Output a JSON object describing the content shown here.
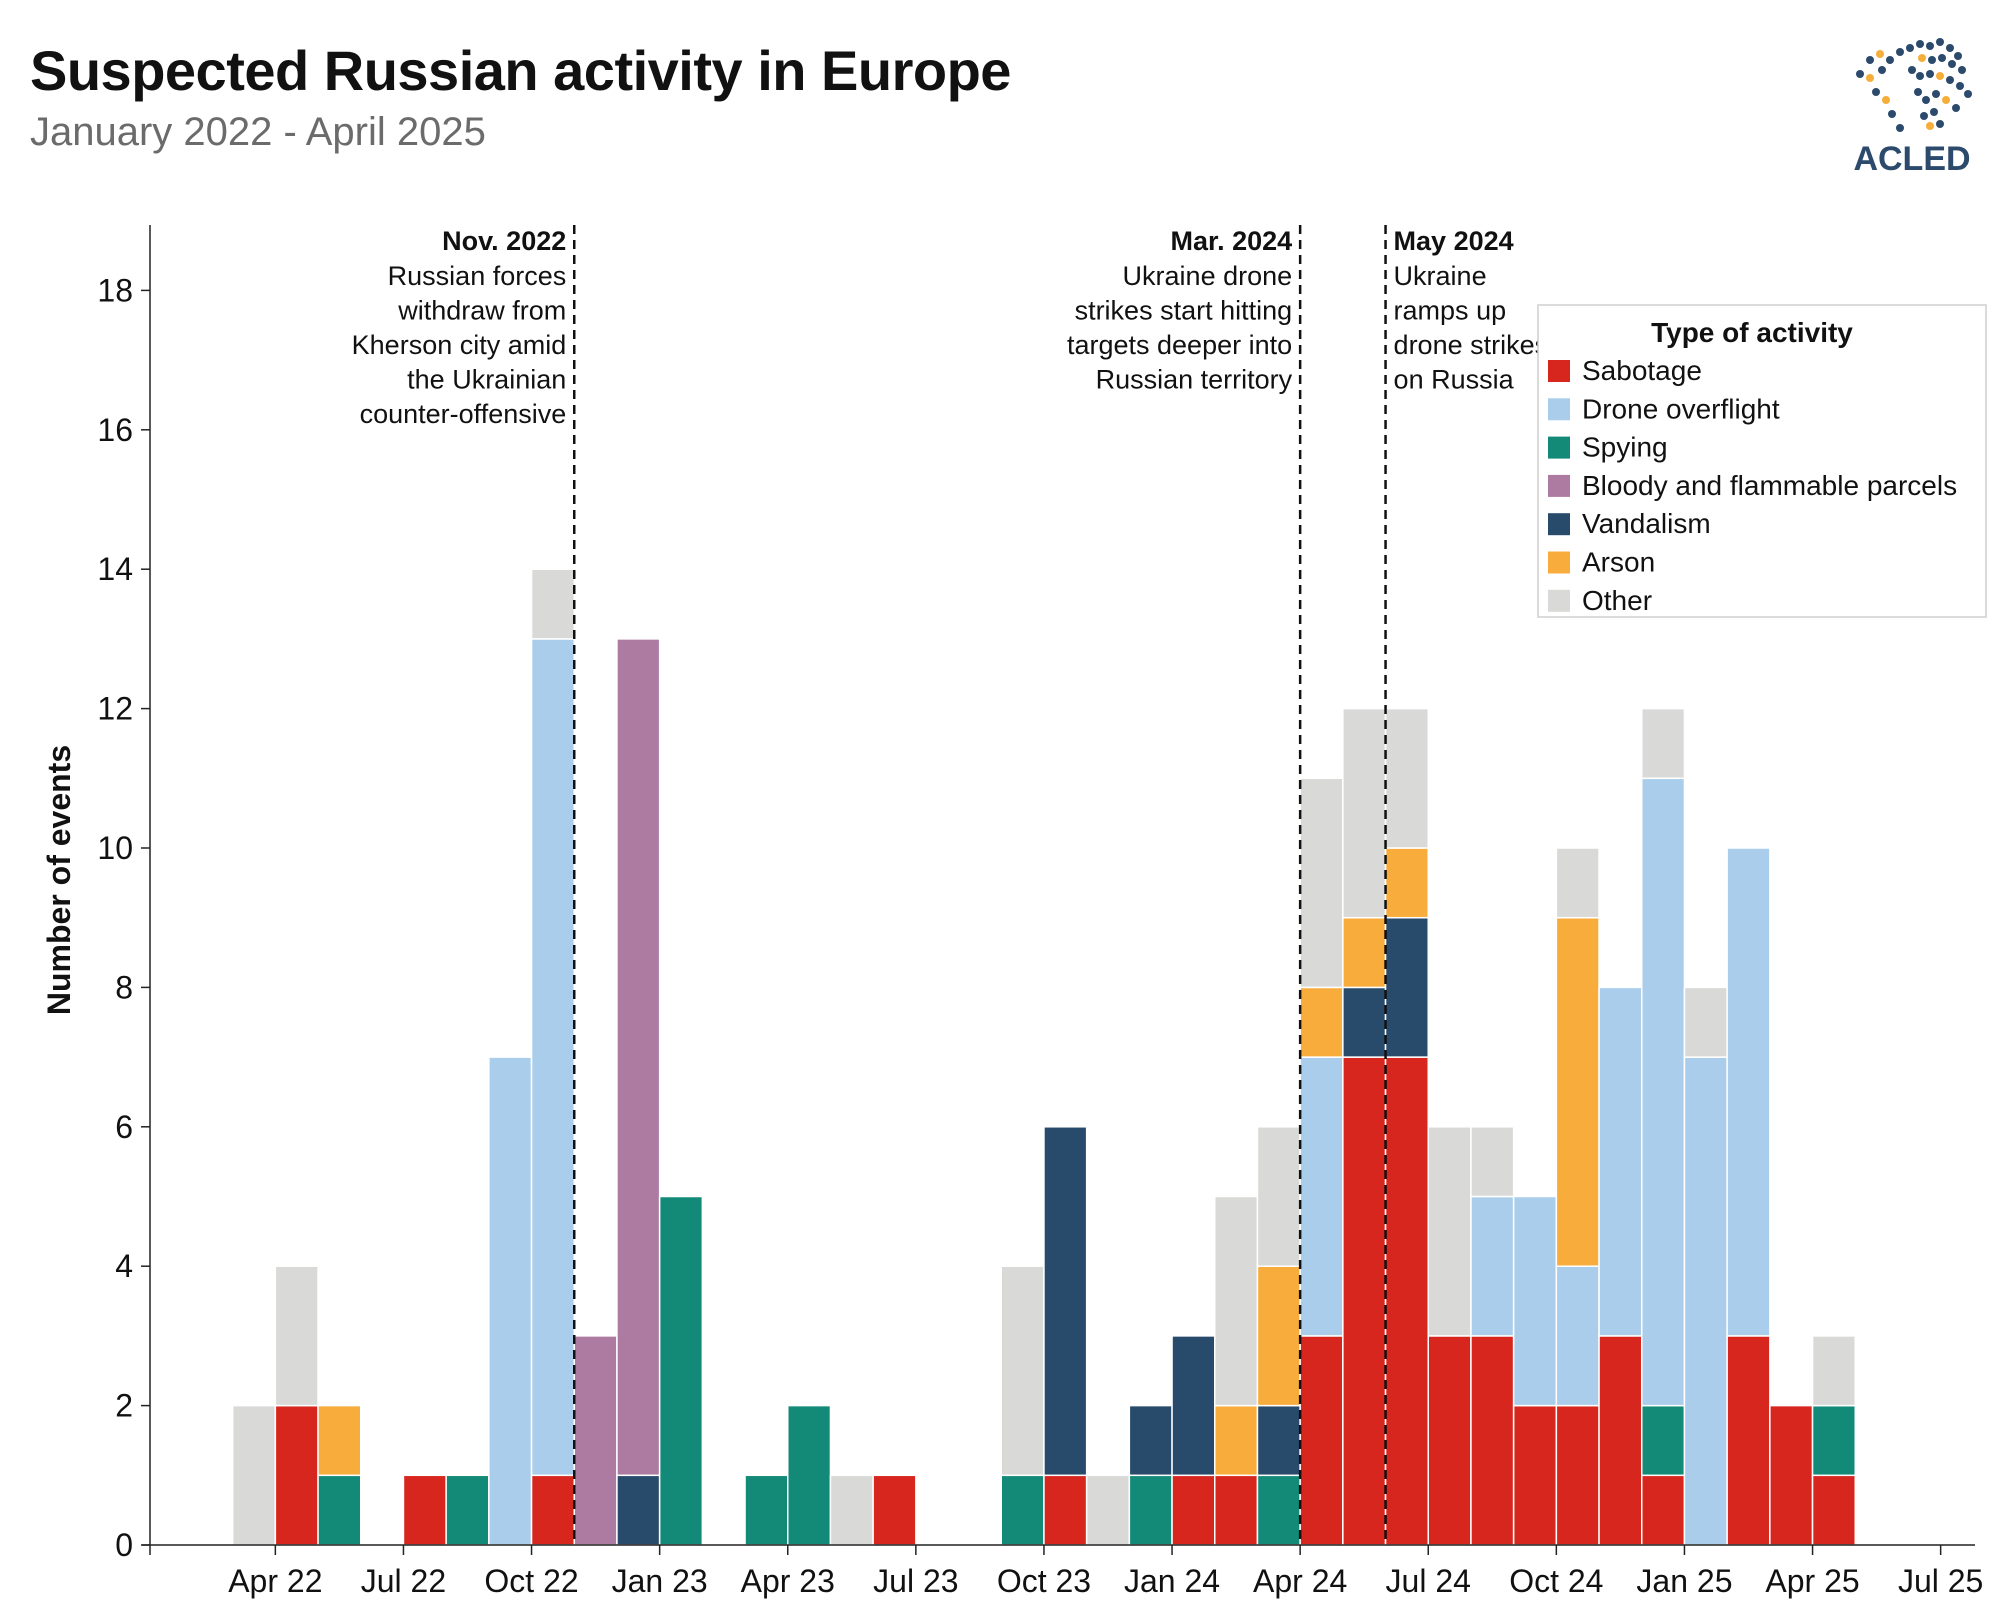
{
  "header": {
    "title": "Suspected Russian activity in Europe",
    "subtitle": "January 2022 - April 2025",
    "logo_text": "ACLED"
  },
  "colors": {
    "Sabotage": "#d7261e",
    "Drone overflight": "#a9cdea",
    "Spying": "#138a78",
    "Bloody and flammable parcels": "#ad7aa1",
    "Vandalism": "#284b6c",
    "Arson": "#f8ac3b",
    "Other": "#d9dad8"
  },
  "chart_data": {
    "type": "bar",
    "stacked": true,
    "ylabel": "Number of events",
    "ylim": [
      0,
      19
    ],
    "yticks": [
      0,
      2,
      4,
      6,
      8,
      10,
      12,
      14,
      16,
      18
    ],
    "xlim": [
      "2022-01",
      "2025-07"
    ],
    "xticks": [
      "Apr 22",
      "Jul 22",
      "Oct 22",
      "Jan 23",
      "Apr 23",
      "Jul 23",
      "Oct 23",
      "Jan 24",
      "Apr 24",
      "Jul 24",
      "Oct 24",
      "Jan 25",
      "Apr 25",
      "Jul 25"
    ],
    "grid": false,
    "legend": {
      "title": "Type of activity",
      "position": "top-right",
      "entries": [
        "Sabotage",
        "Drone overflight",
        "Spying",
        "Bloody and flammable parcels",
        "Vandalism",
        "Arson",
        "Other"
      ]
    },
    "stack_order": [
      "Sabotage",
      "Spying",
      "Vandalism",
      "Drone overflight",
      "Bloody and flammable parcels",
      "Arson",
      "Other"
    ],
    "months": [
      "2022-03",
      "2022-04",
      "2022-05",
      "2022-06",
      "2022-07",
      "2022-08",
      "2022-09",
      "2022-10",
      "2022-11",
      "2022-12",
      "2023-01",
      "2023-02",
      "2023-03",
      "2023-04",
      "2023-05",
      "2023-06",
      "2023-07",
      "2023-08",
      "2023-09",
      "2023-10",
      "2023-11",
      "2023-12",
      "2024-01",
      "2024-02",
      "2024-03",
      "2024-04",
      "2024-05",
      "2024-06",
      "2024-07",
      "2024-08",
      "2024-09",
      "2024-10",
      "2024-11",
      "2024-12",
      "2025-01",
      "2025-02",
      "2025-03",
      "2025-04"
    ],
    "series": [
      {
        "name": "Sabotage",
        "values": [
          0,
          2,
          0,
          0,
          1,
          0,
          0,
          1,
          0,
          0,
          0,
          0,
          0,
          0,
          0,
          1,
          0,
          0,
          0,
          1,
          0,
          0,
          1,
          1,
          0,
          3,
          7,
          7,
          3,
          3,
          2,
          2,
          3,
          1,
          0,
          3,
          2,
          1
        ]
      },
      {
        "name": "Spying",
        "values": [
          0,
          0,
          1,
          0,
          0,
          1,
          0,
          0,
          0,
          0,
          5,
          0,
          1,
          2,
          0,
          0,
          0,
          0,
          1,
          0,
          0,
          1,
          0,
          0,
          1,
          0,
          0,
          0,
          0,
          0,
          0,
          0,
          0,
          1,
          0,
          0,
          0,
          1
        ]
      },
      {
        "name": "Vandalism",
        "values": [
          0,
          0,
          0,
          0,
          0,
          0,
          0,
          0,
          0,
          1,
          0,
          0,
          0,
          0,
          0,
          0,
          0,
          0,
          0,
          5,
          0,
          1,
          2,
          0,
          1,
          0,
          1,
          2,
          0,
          0,
          0,
          0,
          0,
          0,
          0,
          0,
          0,
          0
        ]
      },
      {
        "name": "Drone overflight",
        "values": [
          0,
          0,
          0,
          0,
          0,
          0,
          7,
          12,
          0,
          0,
          0,
          0,
          0,
          0,
          0,
          0,
          0,
          0,
          0,
          0,
          0,
          0,
          0,
          0,
          0,
          4,
          0,
          0,
          0,
          2,
          3,
          2,
          5,
          9,
          7,
          7,
          0,
          0
        ]
      },
      {
        "name": "Bloody and flammable parcels",
        "values": [
          0,
          0,
          0,
          0,
          0,
          0,
          0,
          0,
          3,
          12,
          0,
          0,
          0,
          0,
          0,
          0,
          0,
          0,
          0,
          0,
          0,
          0,
          0,
          0,
          0,
          0,
          0,
          0,
          0,
          0,
          0,
          0,
          0,
          0,
          0,
          0,
          0,
          0
        ]
      },
      {
        "name": "Arson",
        "values": [
          0,
          0,
          1,
          0,
          0,
          0,
          0,
          0,
          0,
          0,
          0,
          0,
          0,
          0,
          0,
          0,
          0,
          0,
          0,
          0,
          0,
          0,
          0,
          1,
          2,
          1,
          1,
          1,
          0,
          0,
          0,
          5,
          0,
          0,
          0,
          0,
          0,
          0
        ]
      },
      {
        "name": "Other",
        "values": [
          2,
          2,
          0,
          0,
          0,
          0,
          0,
          1,
          0,
          0,
          0,
          0,
          0,
          0,
          1,
          0,
          0,
          0,
          3,
          0,
          1,
          0,
          0,
          3,
          2,
          3,
          3,
          2,
          3,
          1,
          0,
          1,
          0,
          1,
          1,
          0,
          0,
          1
        ]
      }
    ],
    "annotations": [
      {
        "month": "2022-11",
        "side": "left",
        "date": "Nov. 2022",
        "text": [
          "Russian forces",
          "withdraw from",
          "Kherson city amid",
          "the Ukrainian",
          "counter-offensive"
        ]
      },
      {
        "month": "2024-04",
        "side": "left",
        "date": "Mar. 2024",
        "text": [
          "Ukraine drone",
          "strikes start hitting",
          "targets deeper into",
          "Russian territory"
        ]
      },
      {
        "month": "2024-06",
        "side": "right",
        "date": "May 2024",
        "text": [
          "Ukraine",
          "ramps up",
          "drone strikes",
          "on Russia"
        ]
      }
    ]
  }
}
